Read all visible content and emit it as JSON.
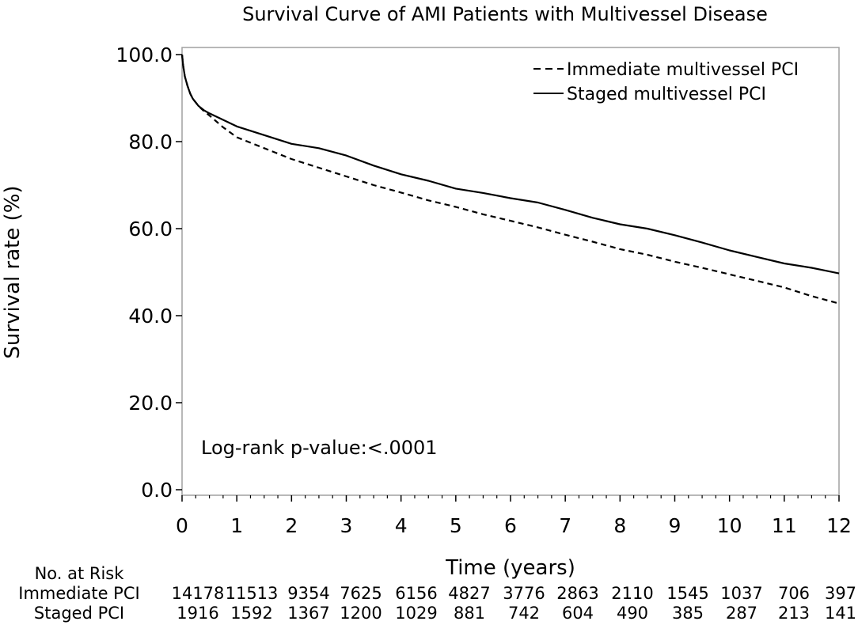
{
  "chart_data": {
    "type": "line",
    "title": "Survival Curve of AMI Patients with Multivessel Disease",
    "xlabel": "Time (years)",
    "ylabel": "Survival rate (%)",
    "xlim": [
      0,
      12
    ],
    "ylim": [
      0,
      100
    ],
    "x_ticks": [
      0,
      1,
      2,
      3,
      4,
      5,
      6,
      7,
      8,
      9,
      10,
      11,
      12
    ],
    "x_tick_labels": [
      "0",
      "1",
      "2",
      "3",
      "4",
      "5",
      "6",
      "7",
      "8",
      "9",
      "10",
      "11",
      "12"
    ],
    "y_ticks": [
      0,
      20,
      40,
      60,
      80,
      100
    ],
    "y_tick_labels": [
      "0.0",
      "20.0",
      "40.0",
      "60.0",
      "80.0",
      "100.0"
    ],
    "grid": false,
    "legend_position": "top-right",
    "annotation": "Log-rank p-value:<.0001",
    "series": [
      {
        "name": "Immediate multivessel PCI",
        "style": "dashed",
        "color": "#000000",
        "x": [
          0,
          0.02,
          0.05,
          0.1,
          0.15,
          0.2,
          0.3,
          0.4,
          0.5,
          0.75,
          1,
          1.5,
          2,
          2.5,
          3,
          3.5,
          4,
          4.5,
          5,
          5.5,
          6,
          6.5,
          7,
          7.5,
          8,
          8.5,
          9,
          9.5,
          10,
          10.5,
          11,
          11.5,
          12
        ],
        "y": [
          100,
          97.5,
          95,
          92.8,
          91,
          89.8,
          88.2,
          87,
          86,
          83.3,
          81,
          78.5,
          76,
          74,
          72,
          70,
          68.3,
          66.5,
          65,
          63.3,
          61.8,
          60.3,
          58.6,
          57,
          55.3,
          54,
          52.4,
          51,
          49.5,
          48,
          46.5,
          44.5,
          42.8
        ]
      },
      {
        "name": "Staged multivessel PCI",
        "style": "solid",
        "color": "#000000",
        "x": [
          0,
          0.02,
          0.05,
          0.1,
          0.15,
          0.2,
          0.3,
          0.4,
          0.5,
          0.75,
          1,
          1.5,
          2,
          2.5,
          3,
          3.5,
          4,
          4.5,
          5,
          5.5,
          6,
          6.5,
          7,
          7.5,
          8,
          8.5,
          9,
          9.5,
          10,
          10.5,
          11,
          11.5,
          11.7,
          12
        ],
        "y": [
          100,
          97.5,
          95,
          92.8,
          91,
          89.8,
          88.2,
          87.2,
          86.5,
          85,
          83.5,
          81.5,
          79.5,
          78.5,
          76.8,
          74.5,
          72.5,
          71,
          69.2,
          68.2,
          67,
          66,
          64.3,
          62.5,
          61,
          60,
          58.5,
          56.8,
          55,
          53.5,
          52,
          51,
          50.5,
          49.7
        ]
      }
    ]
  },
  "risk_table": {
    "header": "No. at Risk",
    "rows": [
      {
        "label": "Immediate PCI",
        "values": [
          "14178",
          "11513",
          "9354",
          "7625",
          "6156",
          "4827",
          "3776",
          "2863",
          "2110",
          "1545",
          "1037",
          "706",
          "397"
        ]
      },
      {
        "label": "Staged PCI",
        "values": [
          "1916",
          "1592",
          "1367",
          "1200",
          "1029",
          "881",
          "742",
          "604",
          "490",
          "385",
          "287",
          "213",
          "141"
        ]
      }
    ]
  }
}
